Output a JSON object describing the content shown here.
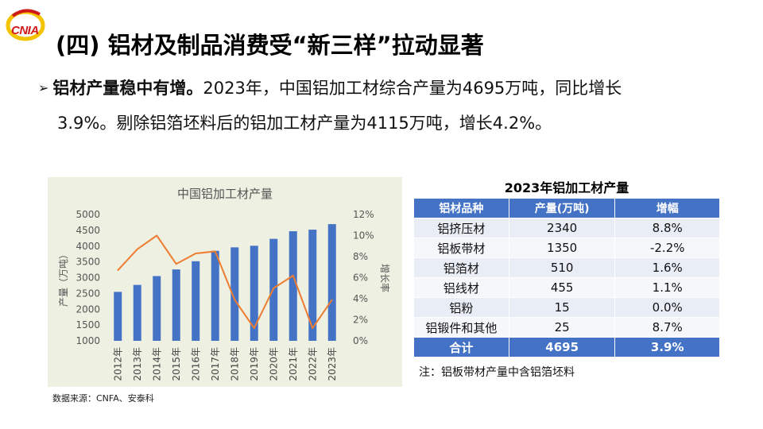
{
  "logo": {
    "text": "CNIA"
  },
  "title": "(四) 铝材及制品消费受“新三样”拉动显著",
  "bullet": {
    "bold_text": "铝材产量稳中有增。",
    "line1_rest": "2023年，中国铝加工材综合产量为4695万吨，同比增长",
    "line2": "3.9%。剔除铝箔坯料后的铝加工材产量为4115万吨，增长4.2%。"
  },
  "chart_data": {
    "type": "bar",
    "title": "中国铝加工材产量",
    "categories": [
      "2012年",
      "2013年",
      "2014年",
      "2015年",
      "2016年",
      "2017年",
      "2018年",
      "2019年",
      "2020年",
      "2021年",
      "2022年",
      "2023年"
    ],
    "series": [
      {
        "type": "bar",
        "axis": "left",
        "color": "#4472c4",
        "values": [
          2550,
          2770,
          3050,
          3260,
          3520,
          3850,
          3960,
          4010,
          4230,
          4470,
          4520,
          4695
        ]
      },
      {
        "type": "line",
        "axis": "right",
        "color": "#ed7d31",
        "values": [
          6.7,
          8.7,
          10.0,
          7.3,
          8.3,
          8.5,
          3.9,
          1.2,
          5.0,
          6.2,
          1.2,
          3.9
        ]
      }
    ],
    "ylabel": "产量（万吨）",
    "y2label": "增长率",
    "ylim": [
      1000,
      5000
    ],
    "y_ticks": [
      "5000",
      "4500",
      "4000",
      "3500",
      "3000",
      "2500",
      "2000",
      "1500",
      "1000"
    ],
    "y2lim": [
      0,
      12
    ],
    "y2_ticks": [
      "12%",
      "10%",
      "8%",
      "6%",
      "4%",
      "2%",
      "0%"
    ],
    "grid": false,
    "legend": "none"
  },
  "table": {
    "title": "2023年铝加工材产量",
    "headers": [
      "铝材品种",
      "产量(万吨)",
      "增幅"
    ],
    "rows": [
      [
        "铝挤压材",
        "2340",
        "8.8%"
      ],
      [
        "铝板带材",
        "1350",
        "-2.2%"
      ],
      [
        "铝箔材",
        "510",
        "1.6%"
      ],
      [
        "铝线材",
        "455",
        "1.1%"
      ],
      [
        "铝粉",
        "15",
        "0.0%"
      ],
      [
        "铝锻件和其他",
        "25",
        "8.7%"
      ]
    ],
    "total": [
      "合计",
      "4695",
      "3.9%"
    ],
    "note": "注：铝板带材产量中含铝箔坯料"
  },
  "source": "数据来源：CNFA、安泰科"
}
